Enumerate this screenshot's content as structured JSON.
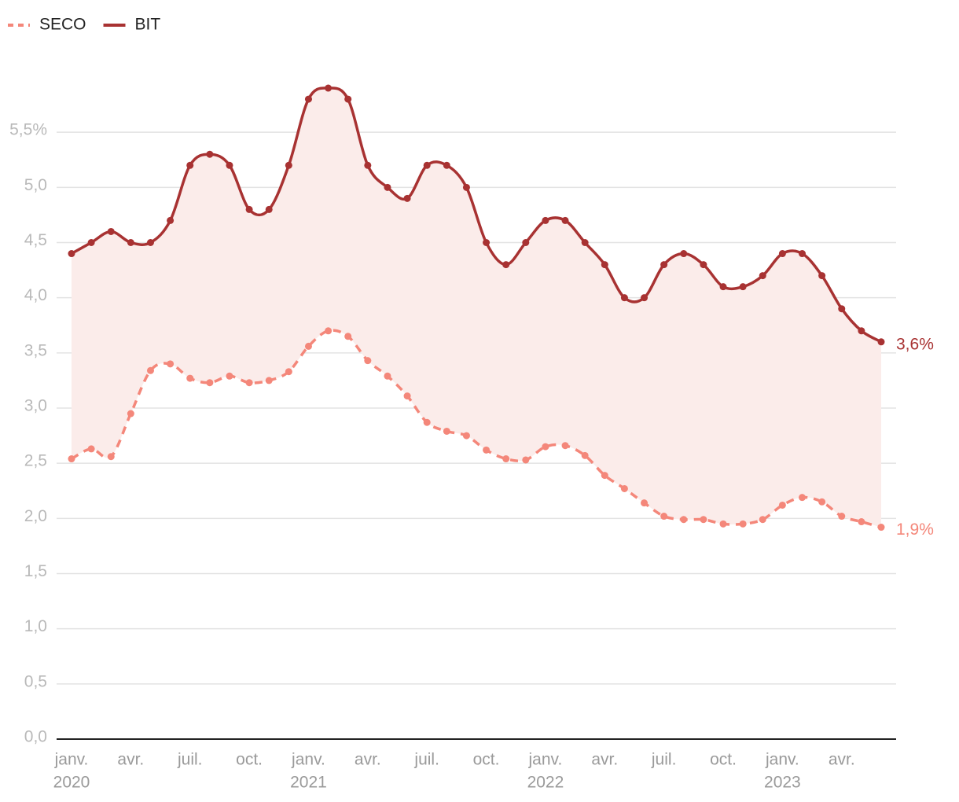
{
  "chart_data": {
    "type": "line",
    "categories": [
      "janv.",
      null,
      null,
      "avr.",
      null,
      null,
      "juil.",
      null,
      null,
      "oct.",
      null,
      null,
      "janv.",
      null,
      null,
      "avr.",
      null,
      null,
      "juil.",
      null,
      null,
      "oct.",
      null,
      null,
      "janv.",
      null,
      null,
      "avr.",
      null,
      null,
      "juil.",
      null,
      null,
      "oct.",
      null,
      null,
      "janv.",
      null,
      null,
      "avr.",
      null,
      null
    ],
    "years": [
      "2020",
      null,
      null,
      null,
      null,
      null,
      null,
      null,
      null,
      null,
      null,
      null,
      "2021",
      null,
      null,
      null,
      null,
      null,
      null,
      null,
      null,
      null,
      null,
      null,
      "2022",
      null,
      null,
      null,
      null,
      null,
      null,
      null,
      null,
      null,
      null,
      null,
      "2023",
      null,
      null,
      null,
      null,
      null
    ],
    "series": [
      {
        "name": "SECO",
        "color": "#f4877a",
        "dashed": true,
        "values": [
          2.54,
          2.63,
          2.56,
          2.95,
          3.34,
          3.4,
          3.27,
          3.23,
          3.29,
          3.23,
          3.25,
          3.33,
          3.56,
          3.7,
          3.65,
          3.43,
          3.29,
          3.11,
          2.87,
          2.79,
          2.75,
          2.62,
          2.54,
          2.53,
          2.65,
          2.66,
          2.57,
          2.39,
          2.27,
          2.14,
          2.02,
          1.99,
          1.99,
          1.95,
          1.95,
          1.99,
          2.12,
          2.19,
          2.15,
          2.02,
          1.97,
          1.92
        ],
        "value_labels": [
          null,
          null,
          null,
          null,
          null,
          null,
          null,
          null,
          null,
          null,
          null,
          null,
          null,
          null,
          null,
          null,
          null,
          null,
          null,
          null,
          null,
          null,
          null,
          null,
          null,
          null,
          null,
          null,
          null,
          null,
          null,
          null,
          null,
          null,
          null,
          null,
          null,
          null,
          null,
          null,
          null,
          "1,9%"
        ]
      },
      {
        "name": "BIT",
        "color": "#a83232",
        "dashed": false,
        "values": [
          4.4,
          4.5,
          4.6,
          4.5,
          4.5,
          4.7,
          5.2,
          5.3,
          5.2,
          4.8,
          4.8,
          5.2,
          5.8,
          5.9,
          5.8,
          5.2,
          5.0,
          4.9,
          5.2,
          5.2,
          5.0,
          4.5,
          4.3,
          4.5,
          4.7,
          4.7,
          4.5,
          4.3,
          4.0,
          4.0,
          4.3,
          4.4,
          4.3,
          4.1,
          4.1,
          4.2,
          4.4,
          4.4,
          4.2,
          3.9,
          3.7,
          3.6
        ],
        "value_labels": [
          null,
          null,
          null,
          null,
          null,
          null,
          null,
          null,
          null,
          null,
          null,
          null,
          null,
          null,
          null,
          null,
          null,
          null,
          null,
          null,
          null,
          null,
          null,
          null,
          null,
          null,
          null,
          null,
          null,
          null,
          null,
          null,
          null,
          null,
          null,
          null,
          null,
          null,
          null,
          null,
          null,
          "3,6%"
        ]
      }
    ],
    "band_color": "#fbecea",
    "ylim": [
      0,
      6.0
    ],
    "yticks": [
      {
        "value": 0,
        "label": "0,0"
      },
      {
        "value": 0.5,
        "label": "0,5"
      },
      {
        "value": 1,
        "label": "1,0"
      },
      {
        "value": 1.5,
        "label": "1,5"
      },
      {
        "value": 2,
        "label": "2,0"
      },
      {
        "value": 2.5,
        "label": "2,5"
      },
      {
        "value": 3,
        "label": "3,0"
      },
      {
        "value": 3.5,
        "label": "3,5"
      },
      {
        "value": 4,
        "label": "4,0"
      },
      {
        "value": 4.5,
        "label": "4,5"
      },
      {
        "value": 5,
        "label": "5,0"
      },
      {
        "value": 5.5,
        "label": "5,5%"
      }
    ],
    "grid": true
  }
}
